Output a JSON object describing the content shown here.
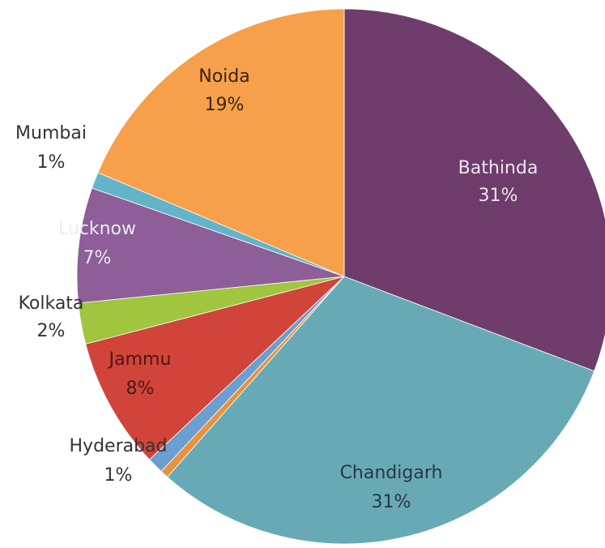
{
  "chart_data": {
    "type": "pie",
    "title": "",
    "slices": [
      {
        "label": "Bathinda",
        "pct_label": "31%",
        "value": 31,
        "color": "#6e3d6b",
        "text_color": "#f0e4ef"
      },
      {
        "label": "Chandigarh",
        "pct_label": "31%",
        "value": 31,
        "color": "#67aab6",
        "text_color": "#2a3540"
      },
      {
        "label": "",
        "pct_label": "",
        "value": 0.5,
        "color": "#e7923f",
        "text_color": "#333333"
      },
      {
        "label": "Hyderabad",
        "pct_label": "1%",
        "value": 1,
        "color": "#6c9ed2",
        "text_color": "#333333"
      },
      {
        "label": "Jammu",
        "pct_label": "8%",
        "value": 8,
        "color": "#d1443a",
        "text_color": "#4a1812"
      },
      {
        "label": "Kolkata",
        "pct_label": "2%",
        "value": 2.5,
        "color": "#9fc63e",
        "text_color": "#333333"
      },
      {
        "label": "Lucknow",
        "pct_label": "7%",
        "value": 7,
        "color": "#8d5e97",
        "text_color": "#eeeaf4"
      },
      {
        "label": "Mumbai",
        "pct_label": "1%",
        "value": 1,
        "color": "#63b4c8",
        "text_color": "#333333"
      },
      {
        "label": "Noida",
        "pct_label": "19%",
        "value": 18.8,
        "color": "#f6a04b",
        "text_color": "#3a2410"
      }
    ],
    "start_angle_deg": 0,
    "direction": "clockwise",
    "legend": "none"
  }
}
